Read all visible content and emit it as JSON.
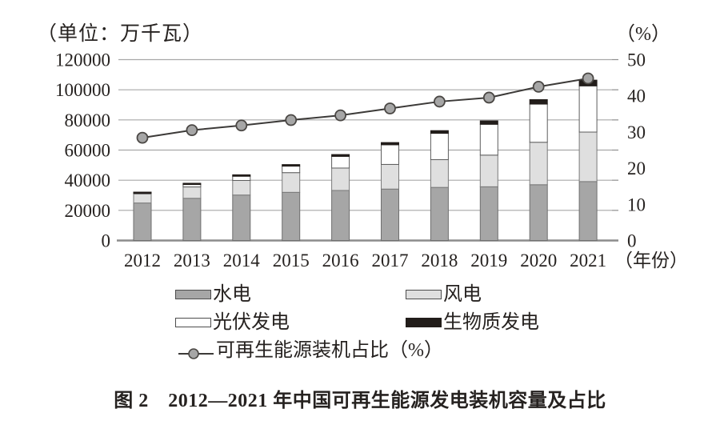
{
  "figure": {
    "unit_label": "（单位：万千瓦）",
    "right_axis_unit": "（%）",
    "caption": "图 2　2012—2021 年中国可再生能源发电装机容量及占比"
  },
  "chart_data": {
    "type": "combo_stacked_bar_line",
    "title": "2012—2021年中国可再生能源发电装机容量及占比",
    "categories": [
      "2012",
      "2013",
      "2014",
      "2015",
      "2016",
      "2017",
      "2018",
      "2019",
      "2020",
      "2021"
    ],
    "x_axis_label": "（年份）",
    "grid": true,
    "legend_position": "bottom",
    "left_axis": {
      "label": "（单位：万千瓦）",
      "min": 0,
      "max": 120000,
      "step": 20000
    },
    "right_axis": {
      "label": "（%）",
      "min": 0,
      "max": 50,
      "step": 10
    },
    "series": [
      {
        "name": "水电",
        "type": "bar",
        "color": "#a6a6a6",
        "border": "#6f6f6f",
        "values": [
          24890,
          28002,
          30183,
          31954,
          33211,
          34119,
          35226,
          35640,
          37016,
          39092
        ]
      },
      {
        "name": "风电",
        "type": "bar",
        "color": "#dfdfdf",
        "border": "#7a7a7a",
        "values": [
          6083,
          7548,
          9657,
          13075,
          14864,
          16367,
          18426,
          21005,
          28153,
          32848
        ]
      },
      {
        "name": "光伏发电",
        "type": "bar",
        "color": "#ffffff",
        "border": "#5d5d5d",
        "values": [
          341,
          1589,
          2805,
          4318,
          7742,
          13025,
          17463,
          20468,
          25343,
          30656
        ]
      },
      {
        "name": "生物质发电",
        "type": "bar",
        "color": "#221d1a",
        "border": "#221d1a",
        "values": [
          800,
          850,
          950,
          1031,
          1214,
          1476,
          1781,
          2254,
          2952,
          3798
        ]
      },
      {
        "name": "可再生能源装机占比（%）",
        "type": "line",
        "axis": "right",
        "color": "#3c3a38",
        "marker_fill": "#a6a6a6",
        "marker_stroke": "#4a4744",
        "values": [
          28.4,
          30.5,
          31.8,
          33.3,
          34.6,
          36.5,
          38.4,
          39.5,
          42.5,
          44.8
        ]
      }
    ]
  }
}
